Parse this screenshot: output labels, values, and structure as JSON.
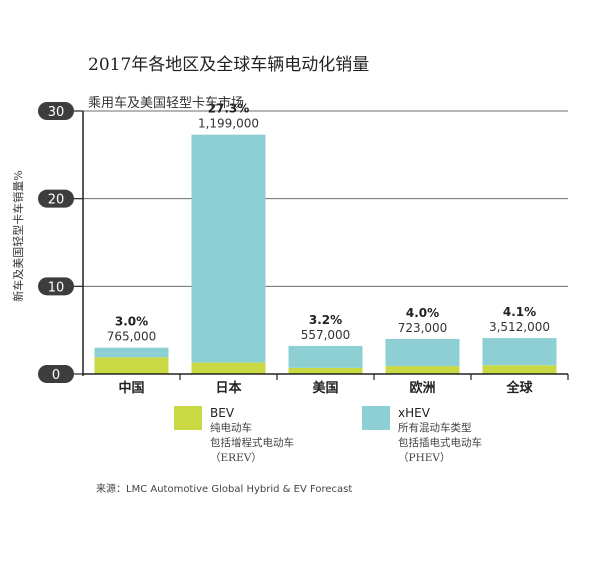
{
  "title": "2017年各地区及全球车辆电动化销量",
  "subtitle": "乘用车及美国轻型卡车市场",
  "ylabel": "新车及美国轻型卡车销量%",
  "source": "来源：LMC Automotive Global Hybrid & EV Forecast",
  "legend": [
    {
      "name": "BEV",
      "lines": [
        "纯电动车",
        "包括增程式电动车",
        "（EREV）"
      ],
      "color": "#c8d944"
    },
    {
      "name": "xHEV",
      "lines": [
        "所有混动车类型",
        "包括插电式电动车",
        "（PHEV）"
      ],
      "color": "#8ecfd3"
    }
  ],
  "chart_data": {
    "type": "bar",
    "stacked": true,
    "categories": [
      "中国",
      "日本",
      "美国",
      "欧洲",
      "全球"
    ],
    "series": [
      {
        "name": "BEV",
        "color": "#c8d944",
        "values": [
          1.9,
          1.3,
          0.7,
          0.9,
          1.0
        ]
      },
      {
        "name": "xHEV",
        "color": "#8ecfd3",
        "values": [
          1.1,
          26.0,
          2.5,
          3.1,
          3.1
        ]
      }
    ],
    "totals_pct": [
      "3.0%",
      "27.3%",
      "3.2%",
      "4.0%",
      "4.1%"
    ],
    "totals_units": [
      "765,000",
      "1,199,000",
      "557,000",
      "723,000",
      "3,512,000"
    ],
    "ylim": [
      0,
      30
    ],
    "yticks": [
      0,
      10,
      20,
      30
    ],
    "grid": true,
    "axis_badge_color": "#3d3d3d"
  }
}
